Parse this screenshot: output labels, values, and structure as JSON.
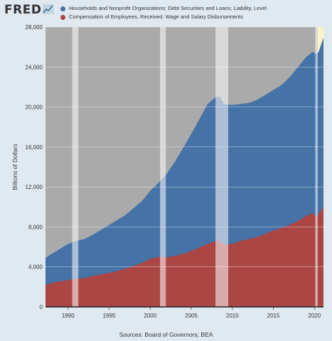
{
  "brand": {
    "logo_text": "FRED",
    "logo_icon": "line-chart-icon"
  },
  "colors": {
    "background": "#e1e9f0",
    "plot_bg": "#aaaaaa",
    "recession": "#e1e1e1",
    "recession_opacity": 0.35,
    "series_debt": "#4572a7",
    "series_comp": "#aa4643",
    "gridline": "#e8e8e8",
    "highlight": "#fbf4c5"
  },
  "source_text": "Sources: Board of Governors; BEA",
  "chart_data": {
    "type": "area",
    "ylabel": "Billions of Dollars",
    "ylim": [
      0,
      28000
    ],
    "xlim": [
      1987.25,
      2021.1
    ],
    "yticks": [
      0,
      4000,
      8000,
      12000,
      16000,
      20000,
      24000,
      28000
    ],
    "ytick_labels": [
      "0",
      "4,000",
      "8,000",
      "12,000",
      "16,000",
      "20,000",
      "24,000",
      "28,000"
    ],
    "xticks": [
      1990,
      1995,
      2000,
      2005,
      2010,
      2015,
      2020
    ],
    "xtick_labels": [
      "1990",
      "1995",
      "2000",
      "2005",
      "2010",
      "2015",
      "2020"
    ],
    "grid": true,
    "legend_position": "top-left",
    "recessions": [
      [
        1990.5,
        1991.25
      ],
      [
        2001.2,
        2001.9
      ],
      [
        2007.95,
        2009.5
      ],
      [
        2020.1,
        2020.4
      ]
    ],
    "highlight_region": [
      2020.4,
      2021.1
    ],
    "series": [
      {
        "name": "Households and Nonprofit Organizations; Debt Securities and Loans; Liability, Level",
        "x": [
          1987.25,
          1988,
          1989,
          1990,
          1991,
          1992,
          1993,
          1994,
          1995,
          1996,
          1997,
          1998,
          1999,
          2000,
          2001,
          2002,
          2003,
          2004,
          2005,
          2006,
          2007,
          2008,
          2008.5,
          2009,
          2010,
          2011,
          2012,
          2013,
          2014,
          2015,
          2016,
          2017,
          2018,
          2019,
          2019.75,
          2020.25,
          2020.5,
          2021,
          2021.1
        ],
        "values": [
          4900,
          5300,
          5800,
          6300,
          6600,
          6800,
          7200,
          7700,
          8200,
          8700,
          9200,
          9900,
          10600,
          11600,
          12400,
          13300,
          14500,
          15900,
          17300,
          18800,
          20300,
          21000,
          21000,
          20300,
          20200,
          20300,
          20400,
          20700,
          21200,
          21700,
          22200,
          23000,
          24000,
          25000,
          25500,
          25300,
          25500,
          26700,
          26900
        ]
      },
      {
        "name": "Compensation of Employees, Received: Wage and Salary Disbursements",
        "x": [
          1987.25,
          1988,
          1989,
          1990,
          1991,
          1992,
          1993,
          1994,
          1995,
          1996,
          1997,
          1998,
          1999,
          2000,
          2001,
          2002,
          2003,
          2004,
          2005,
          2006,
          2007,
          2008,
          2008.5,
          2009,
          2010,
          2011,
          2012,
          2013,
          2014,
          2015,
          2016,
          2017,
          2018,
          2019,
          2019.75,
          2020.25,
          2020.5,
          2021,
          2021.1
        ],
        "values": [
          2200,
          2400,
          2550,
          2700,
          2800,
          2900,
          3100,
          3250,
          3400,
          3600,
          3850,
          4100,
          4400,
          4800,
          5000,
          4950,
          5100,
          5300,
          5600,
          5950,
          6300,
          6600,
          6600,
          6200,
          6300,
          6600,
          6800,
          7000,
          7300,
          7650,
          7900,
          8200,
          8600,
          9100,
          9400,
          9000,
          9300,
          9900,
          10000
        ]
      }
    ]
  }
}
